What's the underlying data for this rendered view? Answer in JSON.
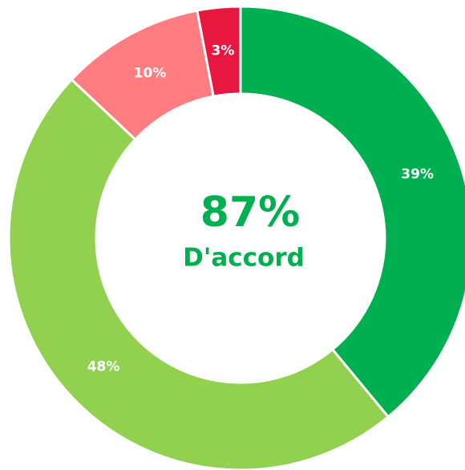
{
  "chart_data": {
    "type": "donut",
    "values": [
      39,
      48,
      10,
      3
    ],
    "value_labels": [
      "39%",
      "48%",
      "10%",
      "3%"
    ],
    "colors": [
      "#00b050",
      "#92d050",
      "#ff7c80",
      "#e8173f"
    ],
    "center_title": "87%",
    "center_subtitle": "D'accord"
  }
}
